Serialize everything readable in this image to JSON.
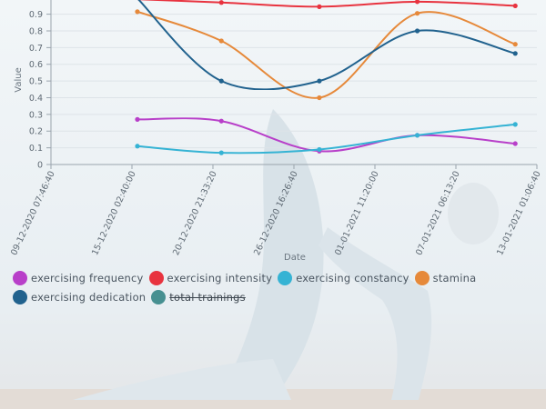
{
  "chart_data": {
    "type": "line",
    "xlabel": "Date",
    "ylabel": "Value",
    "ylim": [
      0,
      1
    ],
    "y_ticks": [
      "0",
      "0.1",
      "0.2",
      "0.3",
      "0.4",
      "0.5",
      "0.6",
      "0.7",
      "0.8",
      "0.9"
    ],
    "x_tick_labels": [
      "09-12-2020 07:46:40",
      "15-12-2020 02:40:00",
      "20-12-2020 21:33:20",
      "26-12-2020 16:26:40",
      "01-01-2021 11:20:00",
      "07-01-2021 06:13:20",
      "13-01-2021 01:06:40"
    ],
    "x_dates": [
      "2020-12-15",
      "2020-12-21",
      "2020-12-28",
      "2021-01-04",
      "2021-01-11"
    ],
    "series": [
      {
        "name": "exercising frequency",
        "color": "#b83fc9",
        "visible": true,
        "values": [
          0.27,
          0.26,
          0.08,
          0.175,
          0.125
        ]
      },
      {
        "name": "exercising intensity",
        "color": "#e8333f",
        "visible": true,
        "values": [
          0.99,
          0.97,
          0.945,
          0.975,
          0.95
        ]
      },
      {
        "name": "exercising constancy",
        "color": "#35b3d4",
        "visible": true,
        "values": [
          0.11,
          0.07,
          0.09,
          0.175,
          0.24
        ]
      },
      {
        "name": "stamina",
        "color": "#e6893a",
        "visible": true,
        "values": [
          0.915,
          0.74,
          0.4,
          0.905,
          0.72
        ]
      },
      {
        "name": "exercising dedication",
        "color": "#21628e",
        "visible": true,
        "values": [
          0.995,
          0.5,
          0.5,
          0.8,
          0.665
        ]
      },
      {
        "name": "total trainings",
        "color": "#2a7f80",
        "visible": false,
        "values": []
      }
    ]
  }
}
